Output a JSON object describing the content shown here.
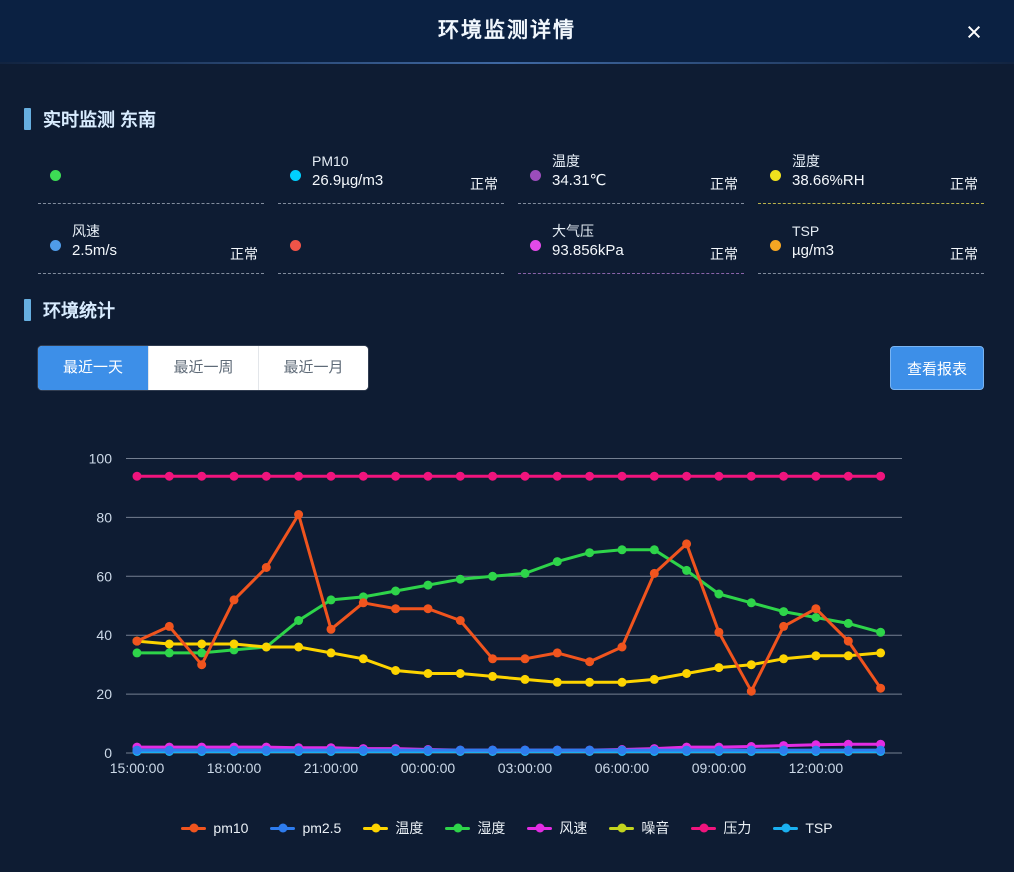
{
  "header": {
    "title": "环境监测详情",
    "close_icon": "×"
  },
  "realtime": {
    "section_title": "实时监测 东南",
    "sensors": [
      {
        "name": "unknown-green",
        "dot_color": "#3ddc55",
        "label": "",
        "value": "",
        "status": "",
        "underline": "rgba(225,235,245,0.55)"
      },
      {
        "name": "pm10",
        "dot_color": "#00d0ff",
        "label": "PM10",
        "value": "26.9µg/m3",
        "status": "正常",
        "underline": "rgba(225,235,245,0.55)"
      },
      {
        "name": "temperature",
        "dot_color": "#9b4dbb",
        "label": "温度",
        "value": "34.31℃",
        "status": "正常",
        "underline": "rgba(225,235,245,0.55)"
      },
      {
        "name": "humidity",
        "dot_color": "#f0e11e",
        "label": "湿度",
        "value": "38.66%RH",
        "status": "正常",
        "underline": "rgba(216,206,80,0.85)"
      },
      {
        "name": "wind-speed",
        "dot_color": "#4f9be8",
        "label": "风速",
        "value": "2.5m/s",
        "status": "正常",
        "underline": "rgba(225,235,245,0.55)"
      },
      {
        "name": "unknown-red",
        "dot_color": "#f05448",
        "label": "",
        "value": "",
        "status": "",
        "underline": "rgba(225,235,245,0.55)"
      },
      {
        "name": "air-pressure",
        "dot_color": "#e24ae8",
        "label": "大气压",
        "value": "93.856kPa",
        "status": "正常",
        "underline": "rgba(190,130,220,0.7)"
      },
      {
        "name": "tsp",
        "dot_color": "#f5a623",
        "label": "TSP",
        "value": "µg/m3",
        "status": "正常",
        "underline": "rgba(225,235,245,0.55)"
      }
    ]
  },
  "stats": {
    "section_title": "环境统计",
    "tabs": [
      {
        "label": "最近一天",
        "active": true
      },
      {
        "label": "最近一周",
        "active": false
      },
      {
        "label": "最近一月",
        "active": false
      }
    ],
    "report_button": "查看报表"
  },
  "chart_data": {
    "type": "line",
    "title": "",
    "xlabel": "",
    "ylabel": "",
    "ylim": [
      0,
      100
    ],
    "yticks": [
      0,
      20,
      40,
      60,
      80,
      100
    ],
    "grid": true,
    "legend_position": "bottom",
    "x_label_every": 3,
    "x": [
      "15:00:00",
      "16:00:00",
      "17:00:00",
      "18:00:00",
      "19:00:00",
      "20:00:00",
      "21:00:00",
      "22:00:00",
      "23:00:00",
      "00:00:00",
      "01:00:00",
      "02:00:00",
      "03:00:00",
      "04:00:00",
      "05:00:00",
      "06:00:00",
      "07:00:00",
      "08:00:00",
      "09:00:00",
      "10:00:00",
      "11:00:00",
      "12:00:00",
      "13:00:00",
      "14:00:00"
    ],
    "series": [
      {
        "name": "pm10",
        "color": "#f0541e",
        "z": 7,
        "values": [
          38,
          43,
          30,
          52,
          63,
          81,
          42,
          51,
          49,
          49,
          45,
          32,
          32,
          34,
          31,
          36,
          61,
          71,
          41,
          21,
          43,
          49,
          38,
          22
        ]
      },
      {
        "name": "pm2.5",
        "color": "#2e7cee",
        "z": 4,
        "values": [
          1,
          1,
          1,
          1,
          1,
          1,
          1,
          1,
          1,
          1,
          1,
          1,
          1,
          1,
          1,
          1,
          1,
          1,
          1,
          1,
          1,
          1,
          1,
          1
        ]
      },
      {
        "name": "温度",
        "color": "#fdd400",
        "z": 6,
        "values": [
          38,
          37,
          37,
          37,
          36,
          36,
          34,
          32,
          28,
          27,
          27,
          26,
          25,
          24,
          24,
          24,
          25,
          27,
          29,
          30,
          32,
          33,
          33,
          34
        ]
      },
      {
        "name": "湿度",
        "color": "#2ed44a",
        "z": 5,
        "values": [
          34,
          34,
          34,
          35,
          36,
          45,
          52,
          53,
          55,
          57,
          59,
          60,
          61,
          65,
          68,
          69,
          69,
          62,
          54,
          51,
          48,
          46,
          44,
          41
        ]
      },
      {
        "name": "风速",
        "color": "#e32ce3",
        "z": 3,
        "values": [
          2,
          2,
          2,
          2,
          2,
          1.8,
          1.8,
          1.5,
          1.5,
          1.2,
          1,
          1,
          1,
          1,
          1,
          1.2,
          1.5,
          2,
          2,
          2.2,
          2.5,
          2.8,
          3,
          3
        ]
      },
      {
        "name": "噪音",
        "color": "#c3d41e",
        "z": 2,
        "values": []
      },
      {
        "name": "压力",
        "color": "#f0147d",
        "z": 8,
        "values": [
          94,
          94,
          94,
          94,
          94,
          94,
          94,
          94,
          94,
          94,
          94,
          94,
          94,
          94,
          94,
          94,
          94,
          94,
          94,
          94,
          94,
          94,
          94,
          94
        ]
      },
      {
        "name": "TSP",
        "color": "#1ab0f0",
        "z": 1,
        "values": [
          0.5,
          0.5,
          0.5,
          0.5,
          0.5,
          0.5,
          0.5,
          0.5,
          0.5,
          0.5,
          0.5,
          0.5,
          0.5,
          0.5,
          0.5,
          0.5,
          0.5,
          0.5,
          0.5,
          0.5,
          0.5,
          0.5,
          0.5,
          0.5
        ]
      }
    ]
  }
}
